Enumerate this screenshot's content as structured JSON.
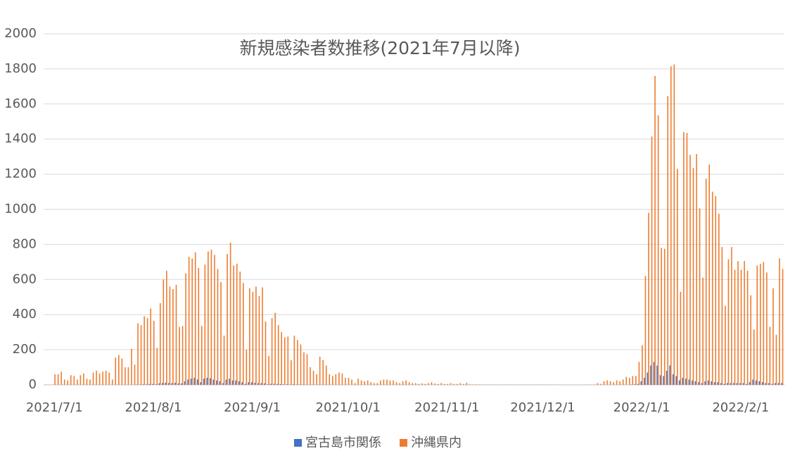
{
  "chart_data": {
    "type": "bar",
    "title": "新規感染者数推移(2021年7月以降)",
    "categories": [
      "2021/7/1",
      null,
      null,
      null,
      null,
      null,
      null,
      null,
      null,
      null,
      null,
      null,
      null,
      null,
      null,
      null,
      null,
      null,
      null,
      null,
      null,
      null,
      null,
      null,
      null,
      null,
      null,
      null,
      null,
      null,
      null,
      "2021/8/1",
      null,
      null,
      null,
      null,
      null,
      null,
      null,
      null,
      null,
      null,
      null,
      null,
      null,
      null,
      null,
      null,
      null,
      null,
      null,
      null,
      null,
      null,
      null,
      null,
      null,
      null,
      null,
      null,
      null,
      null,
      "2021/9/1",
      null,
      null,
      null,
      null,
      null,
      null,
      null,
      null,
      null,
      null,
      null,
      null,
      null,
      null,
      null,
      null,
      null,
      null,
      null,
      null,
      null,
      null,
      null,
      null,
      null,
      null,
      null,
      null,
      null,
      "2021/10/1",
      null,
      null,
      null,
      null,
      null,
      null,
      null,
      null,
      null,
      null,
      null,
      null,
      null,
      null,
      null,
      null,
      null,
      null,
      null,
      null,
      null,
      null,
      null,
      null,
      null,
      null,
      null,
      null,
      null,
      null,
      "2021/11/1",
      null,
      null,
      null,
      null,
      null,
      null,
      null,
      null,
      null,
      null,
      null,
      null,
      null,
      null,
      null,
      null,
      null,
      null,
      null,
      null,
      null,
      null,
      null,
      null,
      null,
      null,
      null,
      null,
      null,
      "2021/12/1",
      null,
      null,
      null,
      null,
      null,
      null,
      null,
      null,
      null,
      null,
      null,
      null,
      null,
      null,
      null,
      null,
      null,
      null,
      null,
      null,
      null,
      null,
      null,
      null,
      null,
      null,
      null,
      null,
      null,
      null,
      "2022/1/1",
      null,
      null,
      null,
      null,
      null,
      null,
      null,
      null,
      null,
      null,
      null,
      null,
      null,
      null,
      null,
      null,
      null,
      null,
      null,
      null,
      null,
      null,
      null,
      null,
      null,
      null,
      null,
      null,
      null,
      null,
      "2022/2/1",
      null,
      null,
      null,
      null,
      null,
      null,
      null,
      null,
      null,
      null,
      null,
      null,
      null
    ],
    "series": [
      {
        "name": "宮古島市関係",
        "color": "#4472c4",
        "values": [
          0,
          0,
          0,
          0,
          0,
          0,
          0,
          0,
          0,
          0,
          0,
          0,
          0,
          0,
          0,
          0,
          0,
          0,
          0,
          0,
          0,
          0,
          0,
          0,
          0,
          0,
          2,
          2,
          3,
          3,
          5,
          5,
          3,
          8,
          10,
          12,
          10,
          10,
          12,
          8,
          8,
          20,
          30,
          35,
          40,
          30,
          15,
          35,
          40,
          38,
          30,
          25,
          20,
          10,
          30,
          35,
          25,
          25,
          20,
          15,
          5,
          15,
          15,
          12,
          10,
          10,
          8,
          3,
          6,
          6,
          5,
          4,
          3,
          3,
          2,
          3,
          2,
          2,
          2,
          1,
          1,
          1,
          1,
          2,
          1,
          1,
          0,
          0,
          0,
          0,
          0,
          0,
          0,
          0,
          0,
          0,
          0,
          0,
          0,
          0,
          0,
          0,
          0,
          0,
          0,
          0,
          0,
          0,
          0,
          0,
          0,
          0,
          0,
          0,
          0,
          0,
          0,
          0,
          0,
          0,
          0,
          0,
          0,
          0,
          0,
          0,
          0,
          0,
          0,
          0,
          0,
          0,
          0,
          0,
          0,
          0,
          0,
          0,
          0,
          0,
          0,
          0,
          0,
          0,
          0,
          0,
          0,
          0,
          0,
          0,
          0,
          0,
          0,
          0,
          0,
          0,
          0,
          0,
          0,
          0,
          0,
          0,
          0,
          0,
          0,
          0,
          0,
          0,
          0,
          0,
          0,
          0,
          0,
          0,
          0,
          0,
          0,
          0,
          0,
          0,
          0,
          2,
          3,
          5,
          20,
          40,
          70,
          110,
          130,
          110,
          55,
          50,
          80,
          110,
          60,
          50,
          25,
          40,
          35,
          30,
          25,
          20,
          15,
          10,
          20,
          25,
          20,
          15,
          15,
          10,
          5,
          10,
          10,
          10,
          10,
          10,
          10,
          5,
          15,
          30,
          25,
          20,
          15,
          10,
          10,
          5,
          10,
          10,
          10
        ]
      },
      {
        "name": "沖縄県内",
        "color": "#ed7d31",
        "values": [
          60,
          60,
          75,
          30,
          25,
          55,
          50,
          30,
          55,
          65,
          35,
          30,
          70,
          80,
          65,
          75,
          80,
          70,
          30,
          155,
          170,
          150,
          100,
          100,
          205,
          115,
          350,
          340,
          390,
          380,
          435,
          365,
          210,
          465,
          600,
          650,
          560,
          545,
          570,
          330,
          335,
          635,
          730,
          720,
          755,
          665,
          335,
          685,
          760,
          770,
          740,
          660,
          585,
          280,
          745,
          810,
          680,
          690,
          645,
          580,
          200,
          550,
          530,
          560,
          505,
          555,
          360,
          165,
          380,
          410,
          340,
          300,
          270,
          275,
          140,
          280,
          255,
          230,
          185,
          175,
          100,
          80,
          60,
          160,
          140,
          110,
          60,
          50,
          60,
          70,
          65,
          40,
          40,
          30,
          10,
          35,
          25,
          20,
          25,
          15,
          10,
          10,
          25,
          30,
          30,
          25,
          25,
          15,
          10,
          20,
          25,
          15,
          10,
          10,
          5,
          8,
          5,
          10,
          15,
          8,
          5,
          10,
          5,
          5,
          10,
          5,
          5,
          10,
          5,
          12,
          3,
          2,
          3,
          2,
          2,
          2,
          2,
          1,
          1,
          1,
          1,
          2,
          1,
          1,
          1,
          1,
          1,
          1,
          1,
          1,
          1,
          1,
          1,
          1,
          0,
          1,
          0,
          0,
          1,
          0,
          0,
          0,
          0,
          0,
          0,
          0,
          0,
          0,
          1,
          2,
          10,
          5,
          20,
          25,
          20,
          15,
          25,
          20,
          30,
          45,
          40,
          50,
          50,
          130,
          225,
          620,
          980,
          1415,
          1760,
          1535,
          780,
          775,
          1645,
          1815,
          1825,
          1230,
          530,
          1440,
          1435,
          1310,
          1235,
          1315,
          1005,
          610,
          1175,
          1255,
          1100,
          1075,
          975,
          785,
          450,
          715,
          785,
          655,
          705,
          655,
          705,
          650,
          510,
          315,
          680,
          690,
          700,
          640,
          330,
          550,
          285,
          720,
          660
        ]
      }
    ],
    "ylim": [
      0,
      2000
    ],
    "yticks": [
      0,
      200,
      400,
      600,
      800,
      1000,
      1200,
      1400,
      1600,
      1800,
      2000
    ],
    "grid": true,
    "legend": "bottom"
  }
}
